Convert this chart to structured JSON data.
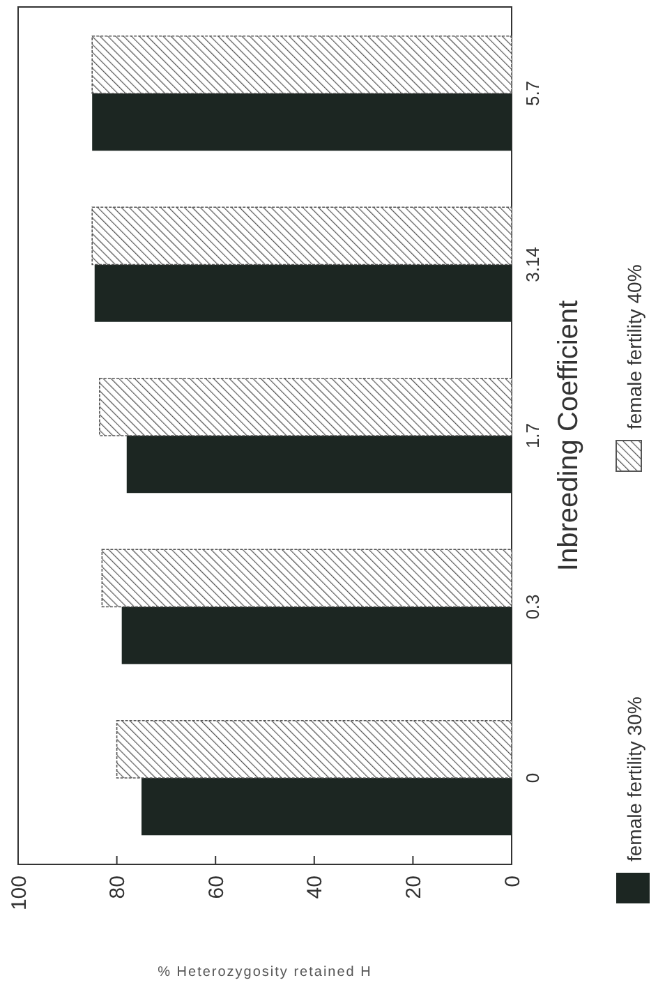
{
  "chart_data": {
    "type": "bar",
    "orientation": "horizontal",
    "xlabel": "% Heterozygosity retained H",
    "ylabel": "Inbreeding Coefficient",
    "categories": [
      "5.7",
      "3.14",
      "1.7",
      "0.3",
      "0"
    ],
    "series": [
      {
        "name": "female fertility 30%",
        "color": "#1c2622",
        "values": [
          85,
          84.5,
          78,
          79,
          75
        ]
      },
      {
        "name": "female fertility 40%",
        "color": "#555555",
        "values": [
          85,
          85,
          83.5,
          83,
          80
        ]
      }
    ],
    "xlim": [
      100,
      0
    ],
    "xticks": [
      100,
      80,
      60,
      40,
      20,
      0
    ],
    "grid": false,
    "legend": "right"
  }
}
